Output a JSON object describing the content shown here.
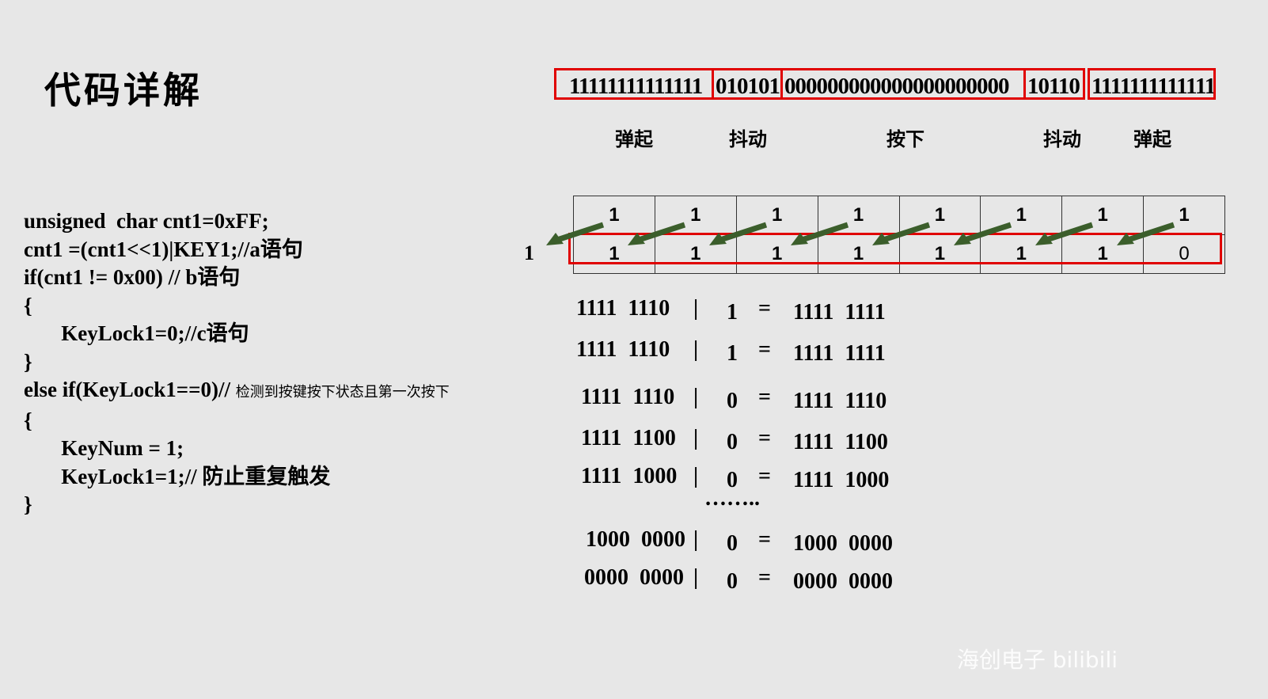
{
  "title": "代码详解",
  "bit_stream": [
    {
      "bits": "11111111111111"
    },
    {
      "bits": "010101"
    },
    {
      "bits": "000000000000000000000"
    },
    {
      "bits": "10110"
    },
    {
      "bits": "1111111111111"
    }
  ],
  "phase_labels": [
    "弹起",
    "抖动",
    "按下",
    "抖动",
    "弹起"
  ],
  "code_lines": [
    {
      "text": "unsigned  char cnt1=0xFF;",
      "comment": ""
    },
    {
      "text": "cnt1 =(cnt1<<1)|KEY1;//a语句",
      "comment": ""
    },
    {
      "text": "if(cnt1 != 0x00) // b语句",
      "comment": ""
    },
    {
      "text": "{",
      "comment": ""
    },
    {
      "text": "       KeyLock1=0;//c语句",
      "comment": ""
    },
    {
      "text": "}",
      "comment": ""
    },
    {
      "text": "else if(KeyLock1==0)// ",
      "comment": "检测到按键按下状态且第一次按下"
    },
    {
      "text": "{",
      "comment": ""
    },
    {
      "text": "       KeyNum = 1;",
      "comment": ""
    },
    {
      "text": "       KeyLock1=1;// 防止重复触发",
      "comment": ""
    },
    {
      "text": "}",
      "comment": ""
    }
  ],
  "shift_register": {
    "top_row": [
      "1",
      "1",
      "1",
      "1",
      "1",
      "1",
      "1",
      "1"
    ],
    "bottom_row": [
      "1",
      "1",
      "1",
      "1",
      "1",
      "1",
      "1",
      "0"
    ],
    "shifted_out": "1"
  },
  "equations": [
    {
      "left": "1111  1110",
      "op": "|",
      "in": "1",
      "eq": "=",
      "result": "1111  1111"
    },
    {
      "left": "1111  1110",
      "op": "|",
      "in": "1",
      "eq": "=",
      "result": "1111  1111"
    },
    {
      "left": "1111  1110",
      "op": "|",
      "in": "0",
      "eq": "=",
      "result": "1111  1110"
    },
    {
      "left": "1111  1100",
      "op": "|",
      "in": "0",
      "eq": "=",
      "result": "1111  1100"
    },
    {
      "left": "1111  1000",
      "op": "|",
      "in": "0",
      "eq": "=",
      "result": "1111  1000"
    },
    {
      "left": "1000  0000",
      "op": "|",
      "in": "0",
      "eq": "=",
      "result": "1000  0000"
    },
    {
      "left": "0000  0000",
      "op": "|",
      "in": "0",
      "eq": "=",
      "result": "0000  0000"
    }
  ],
  "ellipsis": "……..",
  "watermark": "海创电子 bilibili",
  "colors": {
    "highlight": "#e00000",
    "arrow": "#3b5e2b",
    "background": "#e7e7e7"
  }
}
